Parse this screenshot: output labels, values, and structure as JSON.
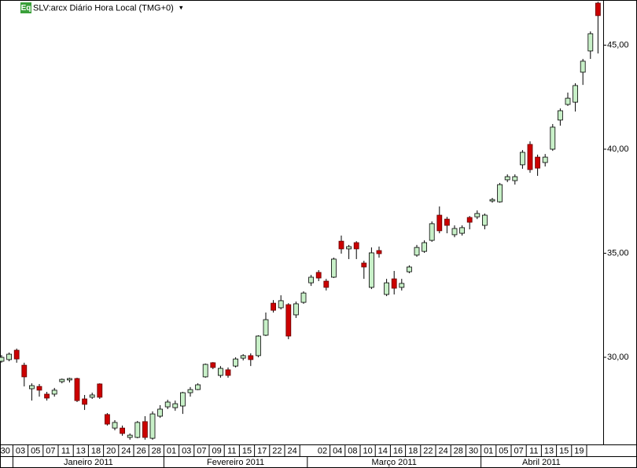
{
  "header": {
    "badge": "Eq",
    "title": "SLV:arcx Diário Hora Local (TMG+0)",
    "menu": "▾"
  },
  "chart_data": {
    "type": "candlestick",
    "categories": [
      "30",
      null,
      "03",
      null,
      "05",
      null,
      "07",
      null,
      "11",
      null,
      "13",
      null,
      "18",
      null,
      "20",
      null,
      "24",
      null,
      "26",
      null,
      "28",
      null,
      "01",
      null,
      "03",
      null,
      "07",
      null,
      "09",
      null,
      "11",
      null,
      "15",
      null,
      "17",
      null,
      "22",
      null,
      "24",
      null,
      null,
      null,
      "02",
      null,
      "04",
      null,
      "08",
      null,
      "10",
      null,
      "14",
      null,
      "16",
      null,
      "18",
      null,
      "22",
      null,
      "24",
      null,
      "28",
      null,
      "30",
      null,
      "01",
      null,
      "05",
      null,
      "07",
      null,
      "11",
      null,
      "13",
      null,
      "15",
      null,
      "19",
      null,
      null,
      null
    ],
    "months": [
      "Janeiro 2011",
      "Fevereiro 2011",
      "Março 2011",
      "Abril 2011"
    ],
    "open": [
      29.81,
      29.89,
      30.34,
      29.62,
      28.49,
      28.6,
      28.23,
      28.23,
      28.83,
      28.91,
      28.98,
      28.0,
      28.08,
      28.72,
      27.25,
      26.6,
      26.6,
      26.15,
      26.15,
      26.91,
      26.11,
      27.17,
      27.62,
      27.58,
      27.66,
      28.3,
      28.45,
      29.06,
      29.74,
      29.13,
      29.4,
      29.58,
      29.96,
      30.08,
      30.08,
      31.06,
      32.6,
      32.38,
      32.53,
      32.04,
      32.64,
      33.58,
      34.08,
      33.66,
      33.85,
      35.58,
      35.21,
      35.51,
      34.53,
      33.36,
      35.13,
      33.02,
      33.77,
      33.36,
      34.11,
      34.91,
      35.09,
      35.62,
      36.83,
      36.64,
      35.89,
      35.96,
      36.72,
      36.75,
      36.34,
      37.51,
      37.47,
      38.53,
      38.49,
      39.25,
      40.23,
      39.62,
      39.36,
      40.0,
      41.4,
      42.15,
      42.26,
      43.7,
      44.72,
      47.02
    ],
    "high": [
      30.11,
      30.23,
      30.42,
      29.74,
      28.75,
      28.72,
      28.34,
      28.53,
      28.98,
      29.02,
      29.02,
      28.19,
      28.3,
      28.75,
      27.32,
      26.98,
      26.72,
      26.34,
      26.94,
      27.17,
      27.4,
      27.7,
      27.96,
      27.92,
      28.34,
      28.57,
      28.75,
      29.7,
      29.77,
      29.58,
      29.51,
      30.0,
      30.15,
      30.19,
      31.06,
      32.15,
      32.75,
      32.98,
      32.6,
      32.68,
      33.17,
      33.96,
      34.19,
      33.77,
      34.79,
      35.85,
      35.4,
      35.58,
      34.64,
      35.28,
      35.32,
      33.77,
      34.15,
      33.77,
      34.42,
      35.4,
      35.62,
      36.53,
      37.25,
      36.75,
      36.34,
      36.34,
      36.79,
      37.06,
      36.91,
      37.66,
      38.38,
      38.79,
      38.79,
      39.96,
      40.38,
      39.74,
      39.77,
      41.21,
      41.96,
      42.72,
      43.17,
      44.34,
      45.66,
      47.09
    ],
    "low": [
      29.74,
      29.81,
      29.74,
      28.6,
      27.92,
      28.11,
      27.92,
      28.11,
      28.75,
      28.79,
      27.85,
      27.47,
      28.0,
      28.0,
      26.72,
      26.49,
      26.23,
      26.04,
      26.11,
      26.04,
      26.04,
      27.09,
      27.51,
      27.43,
      27.28,
      28.11,
      28.42,
      29.02,
      29.43,
      29.02,
      29.02,
      29.51,
      29.85,
      29.58,
      30.0,
      31.02,
      32.15,
      32.3,
      30.87,
      31.89,
      32.57,
      33.43,
      33.66,
      33.21,
      33.81,
      34.98,
      34.72,
      34.72,
      33.77,
      33.28,
      34.79,
      32.94,
      33.02,
      33.21,
      34.04,
      34.83,
      35.02,
      35.55,
      35.96,
      35.96,
      35.77,
      35.85,
      36.15,
      36.64,
      36.15,
      37.43,
      37.43,
      38.42,
      38.3,
      39.06,
      38.87,
      38.72,
      39.17,
      39.92,
      41.13,
      42.08,
      41.81,
      43.09,
      44.34,
      44.6
    ],
    "close": [
      30.0,
      30.15,
      29.92,
      29.06,
      28.64,
      28.42,
      28.04,
      28.42,
      28.94,
      28.98,
      27.92,
      27.74,
      28.19,
      28.08,
      26.79,
      26.87,
      26.34,
      26.26,
      26.87,
      26.15,
      27.28,
      27.51,
      27.85,
      27.77,
      28.3,
      28.45,
      28.68,
      29.66,
      29.51,
      29.47,
      29.13,
      29.92,
      30.08,
      29.89,
      31.02,
      31.81,
      32.26,
      32.72,
      31.02,
      32.57,
      33.09,
      33.85,
      33.81,
      33.36,
      34.72,
      35.21,
      35.32,
      35.21,
      34.34,
      35.02,
      34.98,
      33.58,
      33.32,
      33.55,
      34.34,
      35.28,
      35.51,
      36.42,
      36.08,
      36.34,
      36.19,
      36.23,
      36.49,
      36.91,
      36.83,
      37.58,
      38.3,
      38.68,
      38.68,
      39.85,
      39.02,
      39.09,
      39.62,
      41.06,
      41.85,
      42.45,
      43.06,
      44.23,
      45.55,
      46.42
    ],
    "up_color": "#c8f0c8",
    "down_color": "#cc0000",
    "ylim": [
      25.85,
      47.17
    ],
    "yticks": [
      {
        "value": 30,
        "label": "30,00"
      },
      {
        "value": 35,
        "label": "35,00"
      },
      {
        "value": 40,
        "label": "40,00"
      },
      {
        "value": 45,
        "label": "45,00"
      }
    ]
  }
}
